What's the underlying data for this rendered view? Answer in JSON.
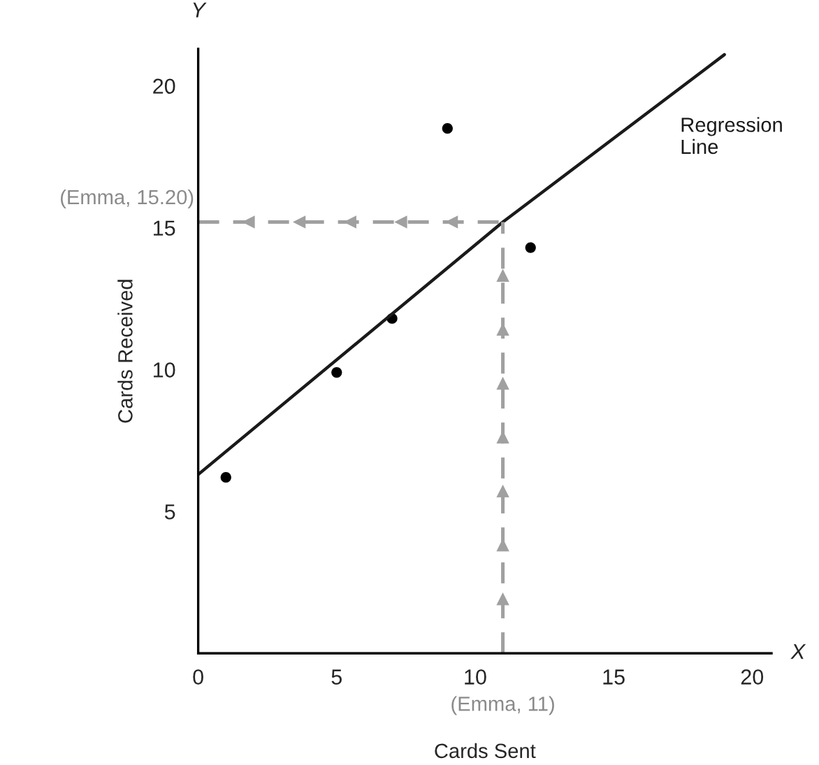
{
  "chart_data": {
    "type": "scatter",
    "xlabel": "Cards Sent",
    "ylabel": "Cards Received",
    "xlim": [
      0,
      20.7
    ],
    "ylim": [
      0,
      21.3
    ],
    "xticks": [
      0,
      5,
      10,
      15,
      20
    ],
    "yticks": [
      5,
      10,
      15,
      20
    ],
    "grid": false,
    "series": [
      {
        "marker": "circle",
        "color": "#000000",
        "x": [
          1,
          5,
          7,
          9,
          12
        ],
        "values": [
          6.2,
          9.9,
          11.8,
          18.5,
          14.3
        ]
      },
      {
        "type": "line",
        "name": "Regression Line",
        "color": "#1a1a1a",
        "x": [
          0,
          11,
          19
        ],
        "values": [
          6.3,
          15.2,
          21.1
        ]
      }
    ],
    "ref_lines": [
      {
        "axis": "x",
        "value": 11,
        "label": "(Emma, 11)",
        "color": "#a0a0a0",
        "line_style": "dashed"
      },
      {
        "axis": "y",
        "value": 15.2,
        "label": "(Emma, 15.20)",
        "color": "#a0a0a0",
        "line_style": "dashed"
      }
    ],
    "annotations": [
      "Y",
      "X"
    ]
  }
}
